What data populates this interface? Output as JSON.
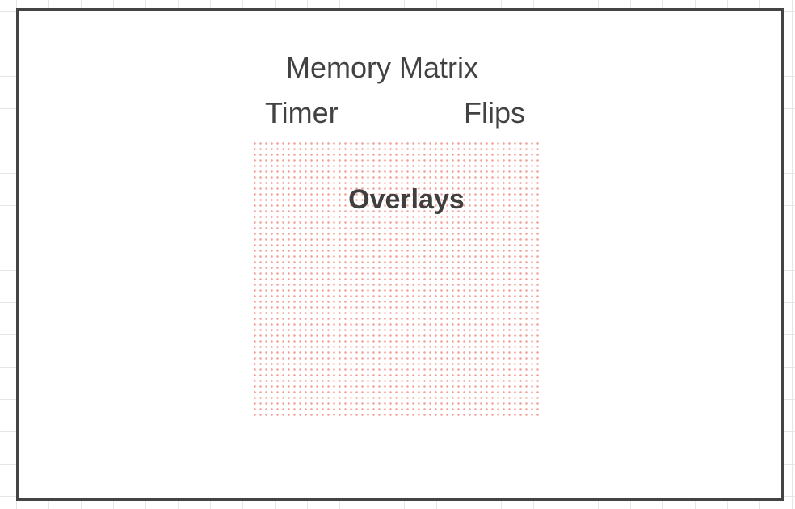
{
  "title": "Memory Matrix",
  "stats": {
    "timer_label": "Timer",
    "flips_label": "Flips"
  },
  "overlay": {
    "label": "Overlays",
    "dot_color": "#f08278"
  },
  "colors": {
    "frame_border": "#444444",
    "text": "#424242",
    "grid": "#e6e6e6"
  }
}
